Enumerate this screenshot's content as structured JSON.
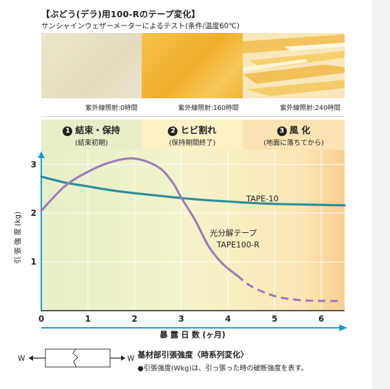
{
  "header": {
    "title": "【ぶどう(デラ)用100-Rのテープ変化】",
    "subtitle": "サンシャインウェザーメーターによるテスト(条件/温度60℃)"
  },
  "samples": [
    {
      "caption": "紫外線照射:0時間",
      "color": "#e7e0c6"
    },
    {
      "caption": "紫外線照射:160時間",
      "color": "#f3b53a"
    },
    {
      "caption": "紫外線照射:240時間",
      "color": "#f8e2a8"
    }
  ],
  "phases": [
    {
      "num": "1",
      "label": "結束・保持",
      "sub": "(結束初期)",
      "color": "#e6efc9"
    },
    {
      "num": "2",
      "label": "ヒビ割れ",
      "sub": "(保持期間終了)",
      "color": "#fdf1c6"
    },
    {
      "num": "3",
      "label": "風 化",
      "sub": "(地面に落ちてから)",
      "color": "#fbe3b4"
    }
  ],
  "chart_data": {
    "type": "line",
    "xlabel": "暴 露 日 数 (ヶ月)",
    "ylabel": "引 張 強 度 (kg)",
    "xlim": [
      0,
      6.5
    ],
    "ylim": [
      0,
      3.3
    ],
    "x_ticks": [
      "0",
      "1",
      "2",
      "3",
      "4",
      "5",
      "6"
    ],
    "y_ticks": [
      "1",
      "2",
      "3"
    ],
    "grid": true,
    "series": [
      {
        "name": "TAPE-10",
        "color": "#2a8c9c",
        "x": [
          0,
          0.5,
          1,
          1.5,
          2,
          2.5,
          3,
          3.5,
          4,
          4.5,
          5,
          5.5,
          6,
          6.5
        ],
        "values": [
          2.75,
          2.63,
          2.55,
          2.47,
          2.41,
          2.36,
          2.31,
          2.27,
          2.24,
          2.21,
          2.19,
          2.18,
          2.17,
          2.16
        ]
      },
      {
        "name_lines": [
          "光分解テープ",
          "TAPE100-R"
        ],
        "color": "#9b7cb6",
        "x": [
          0,
          0.5,
          1,
          1.5,
          2,
          2.5,
          2.8,
          3,
          3.3,
          3.6,
          3.9,
          4.2
        ],
        "values": [
          2.05,
          2.55,
          2.85,
          3.05,
          3.12,
          2.95,
          2.65,
          2.32,
          1.85,
          1.3,
          0.95,
          0.72
        ],
        "dashed_x": [
          4.2,
          4.5,
          5,
          5.5,
          6,
          6.4
        ],
        "dashed_values": [
          0.72,
          0.5,
          0.3,
          0.22,
          0.2,
          0.2
        ]
      }
    ],
    "labels": {
      "tape10": "TAPE-10",
      "tape100r_1": "光分解テープ",
      "tape100r_2": "TAPE100-R"
    }
  },
  "footer": {
    "title": "基材部引張強度〈時系列変化〉",
    "note": "●引張強度(Wkg)は、引っ張った時の破断強度を表す。",
    "w_left": "W",
    "w_right": "W"
  }
}
